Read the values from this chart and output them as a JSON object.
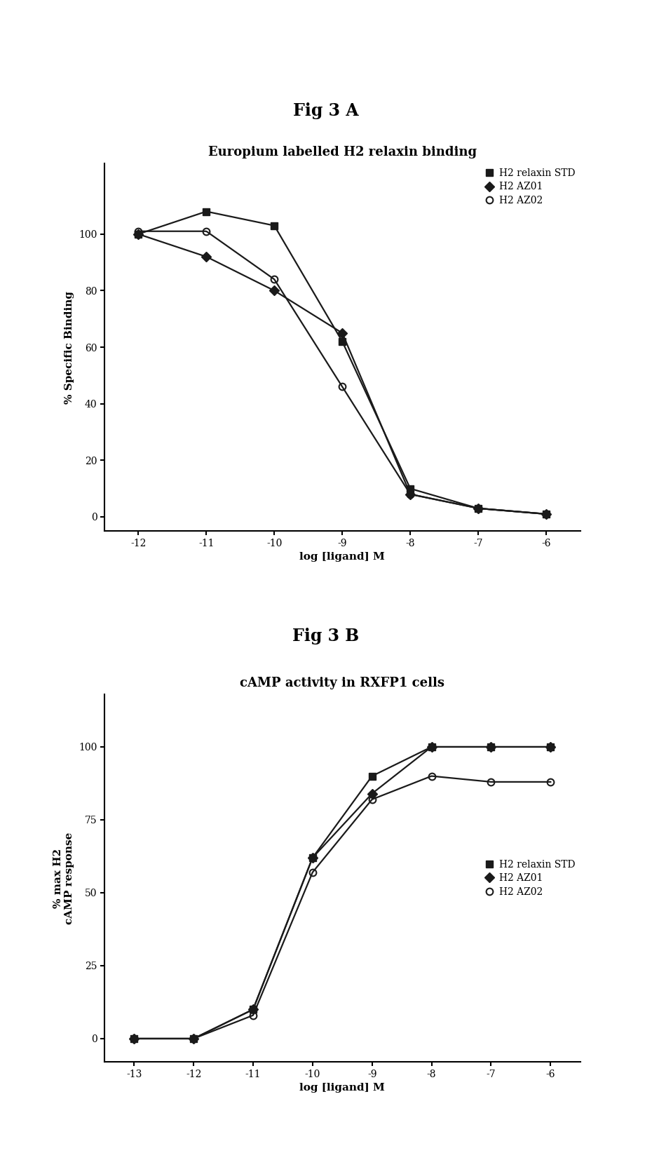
{
  "fig_title_A": "Fig 3 A",
  "fig_title_B": "Fig 3 B",
  "panel_A_title": "Europium labelled H2 relaxin binding",
  "panel_B_title": "cAMP activity in RXFP1 cells",
  "panel_A_ylabel": "% Specific Binding",
  "panel_B_ylabel": "% max H2\ncAMP response",
  "xlabel": "log [ligand] M",
  "panel_A": {
    "xlim": [
      -12.5,
      -5.5
    ],
    "ylim": [
      -5,
      125
    ],
    "xticks": [
      -12,
      -11,
      -10,
      -9,
      -8,
      -7,
      -6
    ],
    "yticks": [
      0,
      20,
      40,
      60,
      80,
      100
    ],
    "series": {
      "STD": {
        "x": [
          -12,
          -11,
          -10,
          -9,
          -8,
          -7,
          -6
        ],
        "y": [
          100,
          108,
          103,
          62,
          10,
          3,
          1
        ],
        "color": "#1a1a1a",
        "marker": "s",
        "fillstyle": "full",
        "label": "H2 relaxin STD",
        "ic50": -9.0
      },
      "AZ01": {
        "x": [
          -12,
          -11,
          -10,
          -9,
          -8,
          -7,
          -6
        ],
        "y": [
          100,
          92,
          80,
          65,
          8,
          3,
          1
        ],
        "color": "#1a1a1a",
        "marker": "D",
        "fillstyle": "full",
        "label": "H2 AZ01",
        "ic50": -9.1
      },
      "AZ02": {
        "x": [
          -12,
          -11,
          -10,
          -9,
          -8,
          -7,
          -6
        ],
        "y": [
          101,
          101,
          84,
          46,
          8,
          3,
          1
        ],
        "color": "#1a1a1a",
        "marker": "o",
        "fillstyle": "none",
        "label": "H2 AZ02",
        "ic50": -8.7
      }
    }
  },
  "panel_B": {
    "xlim": [
      -13.5,
      -5.5
    ],
    "ylim": [
      -8,
      118
    ],
    "xticks": [
      -13,
      -12,
      -11,
      -10,
      -9,
      -8,
      -7,
      -6
    ],
    "yticks": [
      0,
      25,
      50,
      75,
      100
    ],
    "series": {
      "STD": {
        "x": [
          -13,
          -12,
          -11,
          -10,
          -9,
          -8,
          -7,
          -6
        ],
        "y": [
          0,
          0,
          10,
          62,
          90,
          100,
          100,
          100
        ],
        "color": "#1a1a1a",
        "marker": "s",
        "fillstyle": "full",
        "label": "H2 relaxin STD",
        "ec50": -10.3
      },
      "AZ01": {
        "x": [
          -13,
          -12,
          -11,
          -10,
          -9,
          -8,
          -7,
          -6
        ],
        "y": [
          0,
          0,
          10,
          62,
          84,
          100,
          100,
          100
        ],
        "color": "#1a1a1a",
        "marker": "D",
        "fillstyle": "full",
        "label": "H2 AZ01",
        "ec50": -10.2
      },
      "AZ02": {
        "x": [
          -13,
          -12,
          -11,
          -10,
          -9,
          -8,
          -7,
          -6
        ],
        "y": [
          0,
          0,
          8,
          57,
          82,
          90,
          88,
          88
        ],
        "color": "#1a1a1a",
        "marker": "o",
        "fillstyle": "none",
        "label": "H2 AZ02",
        "ec50": -10.1
      }
    }
  },
  "background_color": "#ffffff",
  "line_color": "#1a1a1a",
  "marker_size": 7,
  "line_width": 1.6,
  "font_family": "serif",
  "fig_title_fontsize": 17,
  "subtitle_fontsize": 13,
  "axis_label_fontsize": 11,
  "tick_fontsize": 10,
  "legend_fontsize": 10
}
